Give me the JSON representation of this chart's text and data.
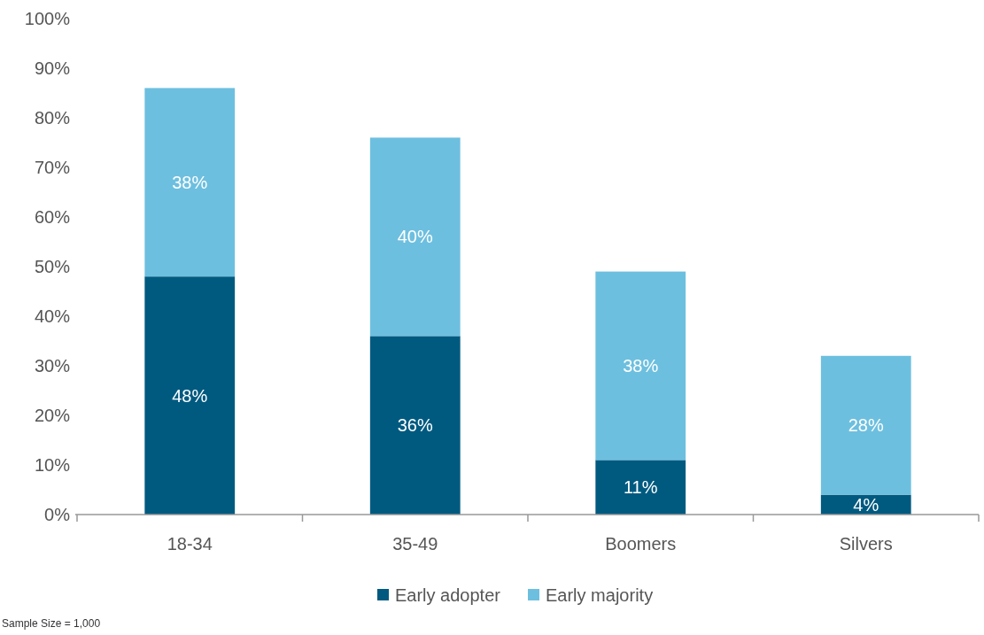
{
  "chart_data": {
    "type": "bar",
    "stacked": true,
    "categories": [
      "18-34",
      "35-49",
      "Boomers",
      "Silvers"
    ],
    "series": [
      {
        "name": "Early adopter",
        "color": "#005a80",
        "values": [
          48,
          36,
          11,
          4
        ],
        "value_labels": [
          "48%",
          "36%",
          "11%",
          "4%"
        ]
      },
      {
        "name": "Early majority",
        "color": "#6dbfdf",
        "values": [
          38,
          40,
          38,
          28
        ],
        "value_labels": [
          "38%",
          "40%",
          "38%",
          "28%"
        ]
      }
    ],
    "ylim": [
      0,
      100
    ],
    "yticks": [
      {
        "value": 0,
        "label": "0%"
      },
      {
        "value": 10,
        "label": "10%"
      },
      {
        "value": 20,
        "label": "20%"
      },
      {
        "value": 30,
        "label": "30%"
      },
      {
        "value": 40,
        "label": "40%"
      },
      {
        "value": 50,
        "label": "50%"
      },
      {
        "value": 60,
        "label": "60%"
      },
      {
        "value": 70,
        "label": "70%"
      },
      {
        "value": 80,
        "label": "80%"
      },
      {
        "value": 90,
        "label": "90%"
      },
      {
        "value": 100,
        "label": "100%"
      }
    ],
    "grid": false,
    "legend": "bottom",
    "annotations": [
      "Sample Size = 1,000"
    ]
  }
}
